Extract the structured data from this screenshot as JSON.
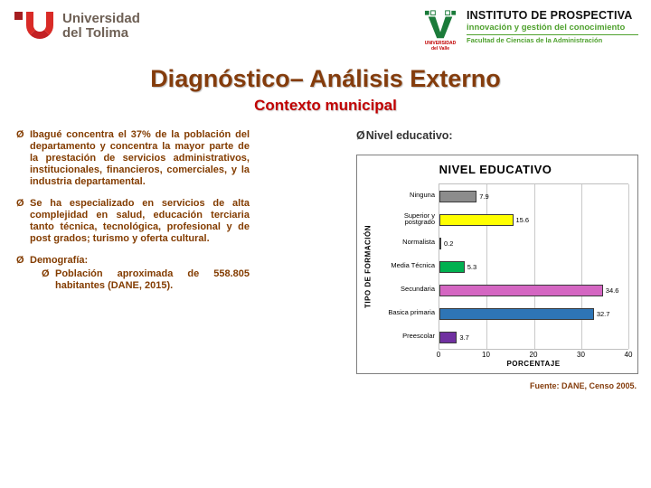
{
  "header": {
    "tolima_logo": {
      "line1": "Universidad",
      "line2": "del Tolima"
    },
    "prospectiva_logo": {
      "title": "INSTITUTO DE PROSPECTIVA",
      "tagline": "innovación y gestión del conocimiento",
      "faculty": "Facultad de Ciencias de la Administración",
      "emblem_caption1": "UNIVERSIDAD",
      "emblem_caption2": "del Valle"
    }
  },
  "slide": {
    "title": "Diagnóstico– Análisis Externo",
    "subtitle": "Contexto municipal"
  },
  "theme": {
    "title_color": "#843C0C",
    "subtitle_color": "#C00000",
    "body_text_color": "#833C00"
  },
  "bullets": {
    "glyph": "Ø",
    "b1_text": "Ibagué concentra el 37% de la población del departamento y concentra la mayor parte de la prestación de servicios administrativos, institucionales, financieros, comerciales, y la industria departamental.",
    "b2_normal1": "Se ha especializado en servicios de alta complejidad en salud, ",
    "b2_bold": "educación terciaria tanto técnica, tecnológica, profesional y de post grados",
    "b2_normal2": "; turismo y oferta cultural.",
    "b3_label": "Demografía:",
    "b3_sub_normal1": "Población aproximada de ",
    "b3_sub_bold": "558.805",
    "b3_sub_normal2": " habitantes (DANE, 2015).",
    "right_label": "Nivel educativo:"
  },
  "chart_source": "Fuente: DANE, Censo 2005.",
  "chart_data": {
    "type": "bar",
    "orientation": "horizontal",
    "title": "NIVEL EDUCATIVO",
    "ylabel": "TIPO DE FORMACIÓN",
    "xlabel": "PORCENTAJE",
    "categories": [
      "Ninguna",
      "Superior y postgrado",
      "Normalista",
      "Media Técnica",
      "Secundaria",
      "Basica primaria",
      "Preescolar"
    ],
    "values": [
      7.9,
      15.6,
      0.2,
      5.3,
      34.6,
      32.7,
      3.7
    ],
    "colors": [
      "#8C8C8C",
      "#FFFF00",
      "#D9D9D9",
      "#00B050",
      "#D466C2",
      "#2E75B6",
      "#7030A0"
    ],
    "xlim": [
      0,
      40
    ],
    "xticks": [
      0,
      10,
      20,
      30,
      40
    ],
    "grid": true,
    "legend": false
  }
}
